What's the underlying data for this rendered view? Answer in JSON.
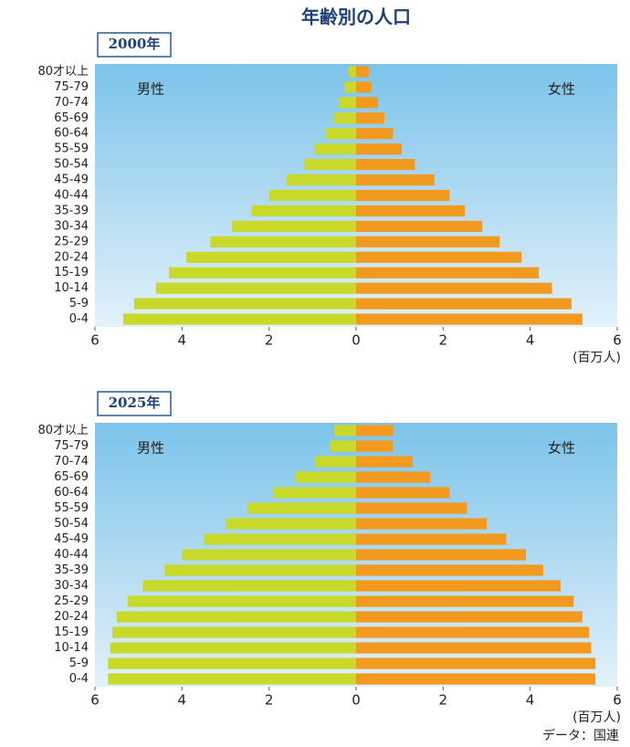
{
  "title": "年齢別の人口",
  "source": "データ：国連",
  "chart_data": [
    {
      "type": "bar",
      "title": "2000年",
      "unit": "(百万人)",
      "categories": [
        "0-4",
        "5-9",
        "10-14",
        "15-19",
        "20-24",
        "25-29",
        "30-34",
        "35-39",
        "40-44",
        "45-49",
        "50-54",
        "55-59",
        "60-64",
        "65-69",
        "70-74",
        "75-79",
        "80才以上"
      ],
      "series": [
        {
          "name": "男性",
          "color": "#c9d92a",
          "values": [
            5.35,
            5.1,
            4.6,
            4.3,
            3.9,
            3.35,
            2.85,
            2.4,
            2.0,
            1.6,
            1.2,
            0.95,
            0.7,
            0.5,
            0.4,
            0.25,
            0.17
          ]
        },
        {
          "name": "女性",
          "color": "#f29a1f",
          "values": [
            5.2,
            4.95,
            4.5,
            4.2,
            3.8,
            3.3,
            2.9,
            2.5,
            2.15,
            1.8,
            1.35,
            1.05,
            0.85,
            0.65,
            0.5,
            0.35,
            0.3
          ]
        }
      ],
      "xlim": [
        -6,
        6
      ],
      "xticks": [
        {
          "value": -6,
          "label": "6"
        },
        {
          "value": -4,
          "label": "4"
        },
        {
          "value": -2,
          "label": "2"
        },
        0,
        2,
        4,
        6
      ]
    },
    {
      "type": "bar",
      "title": "2025年",
      "unit": "(百万人)",
      "categories": [
        "0-4",
        "5-9",
        "10-14",
        "15-19",
        "20-24",
        "25-29",
        "30-34",
        "35-39",
        "40-44",
        "45-49",
        "50-54",
        "55-59",
        "60-64",
        "65-69",
        "70-74",
        "75-79",
        "80才以上"
      ],
      "series": [
        {
          "name": "男性",
          "color": "#c9d92a",
          "values": [
            5.7,
            5.7,
            5.65,
            5.6,
            5.5,
            5.25,
            4.9,
            4.4,
            4.0,
            3.5,
            3.0,
            2.5,
            1.9,
            1.4,
            0.95,
            0.6,
            0.5
          ]
        },
        {
          "name": "女性",
          "color": "#f29a1f",
          "values": [
            5.5,
            5.5,
            5.4,
            5.35,
            5.2,
            5.0,
            4.7,
            4.3,
            3.9,
            3.45,
            3.0,
            2.55,
            2.15,
            1.7,
            1.3,
            0.85,
            0.85
          ]
        }
      ],
      "xlim": [
        -6,
        6
      ],
      "xticks": [
        {
          "value": -6,
          "label": "6"
        },
        {
          "value": -4,
          "label": "4"
        },
        {
          "value": -2,
          "label": "2"
        },
        0,
        2,
        4,
        6
      ]
    }
  ]
}
